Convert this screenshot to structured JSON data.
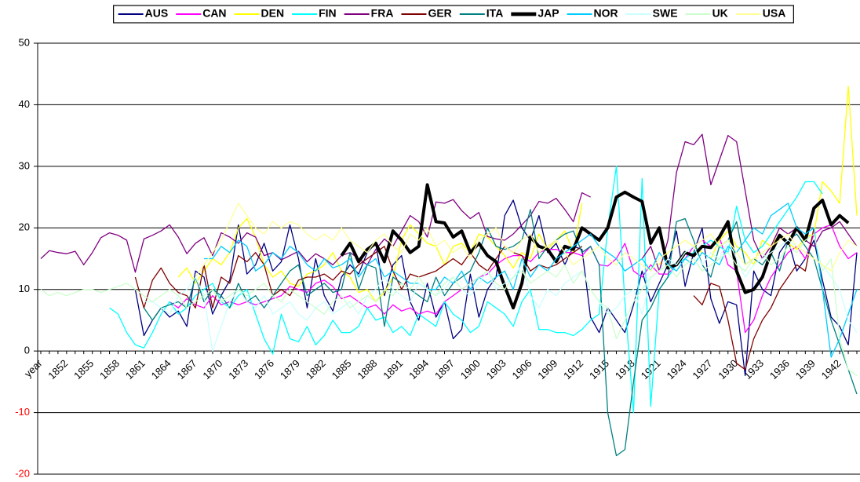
{
  "chart_data": {
    "type": "line",
    "categories": [
      "year",
      null,
      null,
      "1852",
      null,
      null,
      "1855",
      null,
      null,
      "1858",
      null,
      null,
      "1861",
      null,
      null,
      "1864",
      null,
      null,
      "1867",
      null,
      null,
      "1870",
      null,
      null,
      "1873",
      null,
      null,
      "1876",
      null,
      null,
      "1879",
      null,
      null,
      "1882",
      null,
      null,
      "1885",
      null,
      null,
      "1888",
      null,
      null,
      "1891",
      null,
      null,
      "1894",
      null,
      null,
      "1897",
      null,
      null,
      "1900",
      null,
      null,
      "1903",
      null,
      null,
      "1906",
      null,
      null,
      "1909",
      null,
      null,
      "1912",
      null,
      null,
      "1915",
      null,
      null,
      "1918",
      null,
      null,
      "1921",
      null,
      null,
      "1924",
      null,
      null,
      "1927",
      null,
      null,
      "1930",
      null,
      null,
      "1933",
      null,
      null,
      "1936",
      null,
      null,
      "1939",
      null,
      null,
      "1942",
      null,
      null
    ],
    "ylim": [
      -20,
      50
    ],
    "yticks": [
      -20,
      -10,
      0,
      10,
      20,
      30,
      40,
      50
    ],
    "grid": true,
    "negative_tick_color": "#ff0000",
    "legend": "top",
    "series": [
      {
        "name": "AUS",
        "color": "#000080",
        "width": 1.3,
        "values": [
          null,
          null,
          null,
          null,
          null,
          null,
          null,
          null,
          null,
          null,
          null,
          10,
          2.5,
          5,
          7,
          5.5,
          6.5,
          4,
          13,
          12,
          6,
          9,
          11.5,
          20.5,
          12.5,
          14,
          17.5,
          13,
          14.5,
          20.5,
          15,
          7,
          15,
          9,
          6.5,
          12,
          14,
          12.5,
          16,
          17.5,
          9,
          14,
          15.5,
          8,
          5,
          11,
          5.5,
          8,
          2,
          3.5,
          12.5,
          5.5,
          10,
          12,
          22,
          24.5,
          20,
          18,
          22,
          16,
          17.5,
          14,
          17,
          16.5,
          5.5,
          3,
          7,
          5,
          3,
          7.5,
          13,
          8,
          11,
          14,
          19.5,
          10.5,
          16,
          20,
          8.5,
          4.5,
          8,
          7.5,
          -4,
          13,
          10,
          9,
          16,
          18,
          13,
          15,
          18,
          11.5,
          5.5,
          4,
          1,
          16
        ]
      },
      {
        "name": "CAN",
        "color": "#ff00ff",
        "width": 1.3,
        "values": [
          null,
          null,
          null,
          null,
          null,
          null,
          null,
          null,
          null,
          null,
          null,
          null,
          null,
          null,
          null,
          8,
          7,
          8.5,
          7.5,
          7,
          9,
          7.5,
          8,
          7.5,
          8,
          7.5,
          8,
          8.5,
          9,
          10.5,
          10,
          9.5,
          11,
          11.5,
          10.5,
          8.5,
          9,
          8,
          7,
          7.5,
          6,
          7.5,
          6.5,
          7,
          6,
          6.5,
          6,
          8,
          9,
          10,
          11,
          12,
          12.5,
          14,
          15,
          15.5,
          15.5,
          14.5,
          16,
          16.5,
          16.5,
          16,
          16,
          15.5,
          17,
          14,
          13.8,
          15,
          17.5,
          13,
          12,
          14,
          12.5,
          12.5,
          14,
          15,
          17,
          18,
          17,
          18.5,
          14,
          13,
          3,
          5,
          9,
          12,
          14,
          16,
          17,
          15,
          19,
          20,
          20.5,
          17,
          15,
          16
        ]
      },
      {
        "name": "DEN",
        "color": "#ffff00",
        "width": 1.3,
        "values": [
          null,
          null,
          null,
          null,
          null,
          null,
          null,
          null,
          null,
          null,
          null,
          null,
          null,
          null,
          null,
          null,
          12,
          13.5,
          11,
          13,
          15,
          14,
          16,
          20,
          21.5,
          18.5,
          14,
          12,
          13,
          11,
          10.5,
          12.5,
          13,
          14,
          16,
          13,
          12,
          9.5,
          10,
          8,
          9.5,
          12,
          18,
          20.5,
          19,
          17.5,
          17,
          14,
          17,
          17.5,
          16,
          19,
          18.5,
          17,
          15.5,
          13.5,
          16,
          15,
          19,
          16.5,
          18,
          19.5,
          16,
          24,
          null,
          null,
          null,
          null,
          null,
          null,
          null,
          null,
          14,
          16,
          17,
          18,
          17,
          16,
          15,
          18,
          19.5,
          17,
          16,
          14,
          18,
          17,
          19,
          17.5,
          16.5,
          18.5,
          19,
          27.5,
          26,
          24,
          43,
          22
        ]
      },
      {
        "name": "FIN",
        "color": "#00ffff",
        "width": 1.3,
        "values": [
          null,
          null,
          null,
          null,
          null,
          null,
          null,
          null,
          7,
          6,
          3,
          1,
          0.5,
          3,
          6,
          8,
          6,
          7,
          9,
          10,
          11,
          8,
          7,
          9,
          10,
          6,
          2,
          -0.5,
          6,
          2,
          1.5,
          4,
          1,
          2.5,
          5,
          3,
          3,
          4,
          7,
          5,
          5.5,
          3,
          4,
          2.5,
          6,
          5,
          4,
          8,
          6,
          5,
          3,
          4,
          8,
          7,
          6,
          4,
          8,
          10,
          3.5,
          3.5,
          3,
          3,
          2.5,
          3.5,
          5,
          6,
          20,
          30,
          8,
          -10,
          28,
          -9,
          10,
          12,
          14,
          15,
          16,
          17,
          18,
          17,
          16,
          23.5,
          18,
          16,
          17,
          19,
          21,
          23,
          25,
          27.5,
          27.5,
          25.5,
          null,
          null,
          null,
          null
        ]
      },
      {
        "name": "FRA",
        "color": "#800080",
        "width": 1.3,
        "values": [
          15,
          16.3,
          16,
          15.8,
          16.2,
          14,
          16,
          18.4,
          19.2,
          18.8,
          18,
          12.8,
          18.2,
          18.8,
          19.5,
          20.5,
          18.5,
          15.8,
          17.5,
          18.4,
          15.5,
          19.2,
          18.5,
          17.5,
          19.2,
          18.5,
          15.5,
          16,
          14.8,
          15.5,
          16.2,
          14.5,
          15.8,
          15,
          14,
          15.5,
          16,
          15,
          14,
          16.5,
          18.2,
          17,
          19.5,
          22,
          21,
          18.5,
          24.2,
          24,
          24.6,
          22.8,
          21.5,
          22.5,
          18.6,
          18.2,
          18,
          19,
          20.5,
          22,
          24.3,
          24,
          24.8,
          23,
          21,
          25.7,
          25,
          null,
          null,
          null,
          null,
          null,
          15,
          17,
          13,
          18,
          29,
          34,
          33.5,
          35.2,
          27,
          31,
          35,
          34,
          26,
          18,
          15,
          17,
          20,
          19,
          20,
          18,
          17,
          19.5,
          20,
          21,
          19,
          17
        ]
      },
      {
        "name": "GER",
        "color": "#800000",
        "width": 1.3,
        "values": [
          null,
          null,
          null,
          null,
          null,
          null,
          null,
          null,
          null,
          null,
          null,
          12,
          7,
          11.5,
          13.5,
          11,
          9.5,
          9,
          7,
          14,
          7,
          12,
          11,
          15.5,
          14.5,
          16,
          14,
          9,
          10,
          9,
          11.5,
          12,
          12,
          12.5,
          11.5,
          13,
          12.5,
          14,
          15,
          16,
          17,
          13,
          10,
          12.5,
          12,
          12.5,
          13,
          14,
          15,
          14,
          16,
          14,
          13,
          15,
          17,
          16,
          15.5,
          13,
          14,
          13.5,
          14,
          15,
          16,
          17,
          null,
          null,
          null,
          null,
          null,
          null,
          null,
          null,
          null,
          null,
          null,
          null,
          9,
          7.5,
          11,
          10.5,
          5,
          -2,
          -3,
          2,
          5,
          7,
          10,
          12,
          14,
          13,
          20,
          null,
          null,
          null,
          null,
          null
        ]
      },
      {
        "name": "ITA",
        "color": "#008080",
        "width": 1.3,
        "values": [
          null,
          null,
          null,
          null,
          null,
          null,
          null,
          null,
          null,
          null,
          null,
          null,
          7,
          5,
          7,
          7.5,
          8,
          7,
          12,
          8,
          10,
          9,
          7,
          11,
          8,
          9,
          7,
          9,
          11,
          13,
          14,
          9,
          10,
          11,
          9.5,
          10,
          16,
          10,
          14,
          13.5,
          4,
          12,
          11,
          10,
          9,
          8,
          12,
          9,
          11,
          12,
          13,
          16,
          20,
          17,
          16.5,
          17,
          18,
          23,
          15,
          17,
          18,
          19,
          19.5,
          16,
          17,
          14,
          -10,
          -17,
          -16,
          -5,
          5,
          7,
          10,
          12,
          21,
          21.5,
          18,
          14,
          12,
          17,
          18,
          21,
          14,
          15,
          14,
          16,
          13,
          18,
          19,
          17,
          15,
          10,
          5,
          1,
          -3,
          -7
        ]
      },
      {
        "name": "JAP",
        "color": "#000000",
        "width": 4,
        "values": [
          null,
          null,
          null,
          null,
          null,
          null,
          null,
          null,
          null,
          null,
          null,
          null,
          null,
          null,
          null,
          null,
          null,
          null,
          null,
          null,
          null,
          null,
          null,
          null,
          null,
          null,
          null,
          null,
          null,
          null,
          null,
          null,
          null,
          null,
          null,
          15.5,
          17.5,
          14.5,
          16.5,
          17.5,
          14.5,
          19.5,
          18,
          16,
          17,
          27,
          21,
          20.8,
          18.5,
          19.5,
          16,
          17.5,
          15.5,
          14.5,
          10.5,
          7,
          11,
          18.5,
          17,
          16.5,
          14.5,
          17,
          16.5,
          20,
          19,
          18,
          20,
          25,
          25.8,
          25,
          24.3,
          17.5,
          20,
          13.5,
          14,
          16,
          15.5,
          17,
          16.8,
          18.5,
          21,
          13,
          9.5,
          10,
          12,
          16,
          18.8,
          17.5,
          20,
          18,
          23.2,
          24.5,
          20.5,
          22,
          20.8,
          null
        ]
      },
      {
        "name": "NOR",
        "color": "#00ccff",
        "width": 1.3,
        "values": [
          null,
          null,
          null,
          null,
          null,
          null,
          null,
          null,
          null,
          null,
          null,
          null,
          null,
          null,
          null,
          null,
          null,
          null,
          null,
          15,
          15,
          17,
          16,
          18,
          17,
          13,
          14,
          16,
          15,
          17,
          16,
          14,
          13,
          15,
          13.5,
          14,
          15,
          12,
          14,
          15,
          12,
          13,
          12,
          11,
          11,
          10,
          10,
          12,
          11,
          13,
          10,
          12,
          11,
          12,
          13,
          10,
          15,
          12,
          14,
          13,
          15,
          16,
          17,
          18,
          19,
          17,
          16,
          15,
          13,
          14,
          15,
          13,
          16,
          14,
          13,
          15,
          14,
          16,
          15,
          14,
          17,
          16,
          18,
          20,
          19,
          22,
          23,
          24,
          20,
          19,
          20,
          10,
          -1,
          2,
          6,
          10
        ]
      },
      {
        "name": "SWE",
        "color": "#ccffff",
        "width": 1.3,
        "values": [
          null,
          null,
          null,
          null,
          null,
          null,
          null,
          null,
          null,
          null,
          null,
          null,
          8,
          8,
          7,
          6,
          9,
          10,
          12,
          9,
          0,
          4,
          8,
          10,
          8,
          7,
          9,
          6,
          7,
          8,
          6,
          5,
          7,
          8,
          6,
          7,
          8,
          6,
          9,
          10,
          12,
          10,
          9,
          8,
          11,
          10,
          9,
          10,
          12,
          10,
          9,
          11,
          13,
          10,
          11,
          12,
          14,
          9,
          7,
          10,
          9,
          11,
          12,
          13,
          10,
          8,
          6,
          7,
          9,
          10,
          6,
          12,
          13,
          15,
          14,
          16,
          17,
          14,
          16,
          15,
          18,
          15,
          12,
          14,
          15,
          16,
          17,
          18,
          17,
          16,
          15,
          14,
          12,
          10,
          5,
          3
        ]
      },
      {
        "name": "UK",
        "color": "#ccffcc",
        "width": 1.3,
        "values": [
          10,
          9,
          9.5,
          9,
          9.5,
          10,
          10,
          9.5,
          10,
          10.5,
          11,
          10,
          9,
          8,
          9,
          10,
          9,
          7,
          8,
          9,
          10,
          8,
          9,
          10,
          9,
          10,
          11,
          9,
          8,
          10,
          9,
          8,
          7,
          6,
          8,
          9,
          7,
          8,
          9,
          8,
          10,
          9,
          11,
          10,
          12,
          10,
          9,
          11,
          12,
          10,
          11,
          12,
          13,
          11,
          10,
          12,
          13,
          11,
          12,
          13,
          12,
          14,
          11,
          13,
          10,
          8,
          7,
          2,
          5,
          8,
          10,
          12,
          13,
          14,
          12,
          14,
          15,
          13,
          14,
          15,
          16,
          14,
          13,
          15,
          16,
          14,
          15,
          17,
          16,
          18,
          19,
          13,
          15,
          2,
          -3,
          -4
        ]
      },
      {
        "name": "USA",
        "color": "#ffff99",
        "width": 1.3,
        "values": [
          null,
          null,
          null,
          null,
          null,
          null,
          null,
          null,
          null,
          null,
          null,
          null,
          null,
          null,
          null,
          null,
          null,
          null,
          12,
          14,
          16,
          18,
          21,
          24,
          22,
          20,
          19,
          21,
          20,
          21,
          20.5,
          19,
          18,
          19,
          18,
          20,
          18,
          17,
          16,
          18,
          19,
          17,
          16,
          19,
          18,
          20,
          17,
          18,
          16,
          17,
          15,
          18,
          19,
          20,
          17,
          16,
          18,
          19,
          16,
          17,
          18,
          16,
          14,
          15,
          16,
          17,
          15,
          14,
          16,
          15,
          14,
          13,
          15,
          16,
          17,
          18,
          17,
          18,
          19,
          17,
          18,
          16,
          14,
          15,
          16,
          17,
          18,
          19,
          17,
          16,
          15,
          14,
          13,
          16,
          18,
          17
        ]
      }
    ]
  }
}
